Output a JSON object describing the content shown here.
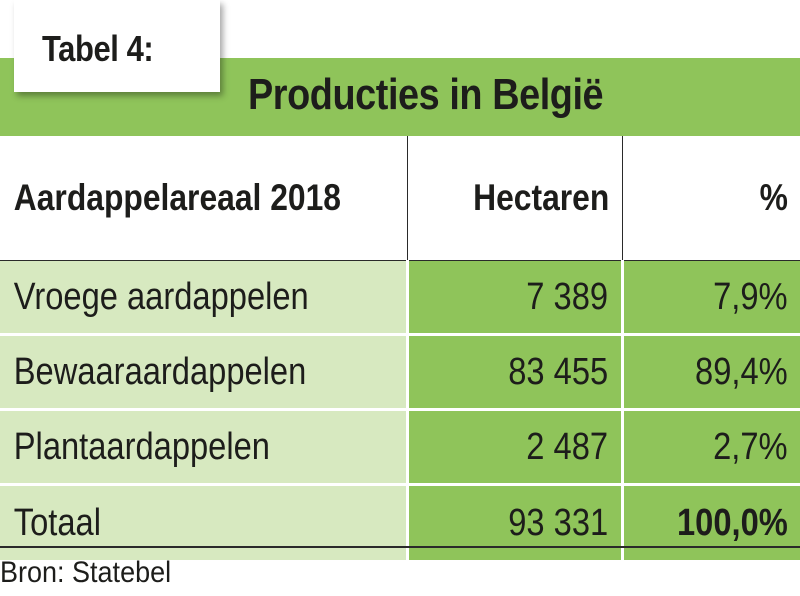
{
  "table_label": "Tabel 4:",
  "title": "Producties in België",
  "columns": {
    "area": "Aardappelareaal 2018",
    "hectares": "Hectaren",
    "percent": "%"
  },
  "rows": [
    {
      "name": "Vroege aardappelen",
      "hectares": "7 389",
      "percent": "7,9%"
    },
    {
      "name": "Bewaaraardappelen",
      "hectares": "83 455",
      "percent": "89,4%"
    },
    {
      "name": "Plantaardappelen",
      "hectares": "2 487",
      "percent": "2,7%"
    }
  ],
  "total": {
    "name": "Totaal",
    "hectares": "93 331",
    "percent": "100,0%"
  },
  "source": "Bron: Statebel",
  "colors": {
    "accent_green": "#8fc45a",
    "light_green": "#d7e9c0",
    "text": "#1d1d1b"
  }
}
